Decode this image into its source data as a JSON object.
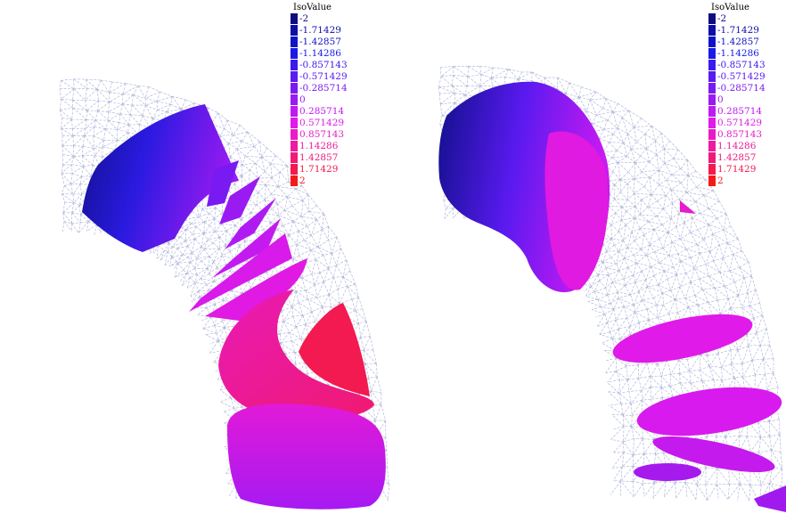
{
  "legend_title": "IsoValue",
  "iso_levels": [
    {
      "label": "-2",
      "color": "#0d0d80"
    },
    {
      "label": "-1.71429",
      "color": "#0f0fa8"
    },
    {
      "label": "-1.42857",
      "color": "#1212c8"
    },
    {
      "label": "-1.14286",
      "color": "#1a1ae6"
    },
    {
      "label": "-0.857143",
      "color": "#3a1aee"
    },
    {
      "label": "-0.571429",
      "color": "#5a1af0"
    },
    {
      "label": "-0.285714",
      "color": "#7a1af2"
    },
    {
      "label": "0",
      "color": "#9a1af2"
    },
    {
      "label": "0.285714",
      "color": "#c01af2"
    },
    {
      "label": "0.571429",
      "color": "#e01ae8"
    },
    {
      "label": "0.857143",
      "color": "#ea1ac8"
    },
    {
      "label": "1.14286",
      "color": "#ee1aa0"
    },
    {
      "label": "1.42857",
      "color": "#f01a78"
    },
    {
      "label": "1.71429",
      "color": "#f21a50"
    },
    {
      "label": "2",
      "color": "#f51a1a"
    }
  ],
  "colors": {
    "mesh": "#a7aed6",
    "background": "#ffffff"
  }
}
